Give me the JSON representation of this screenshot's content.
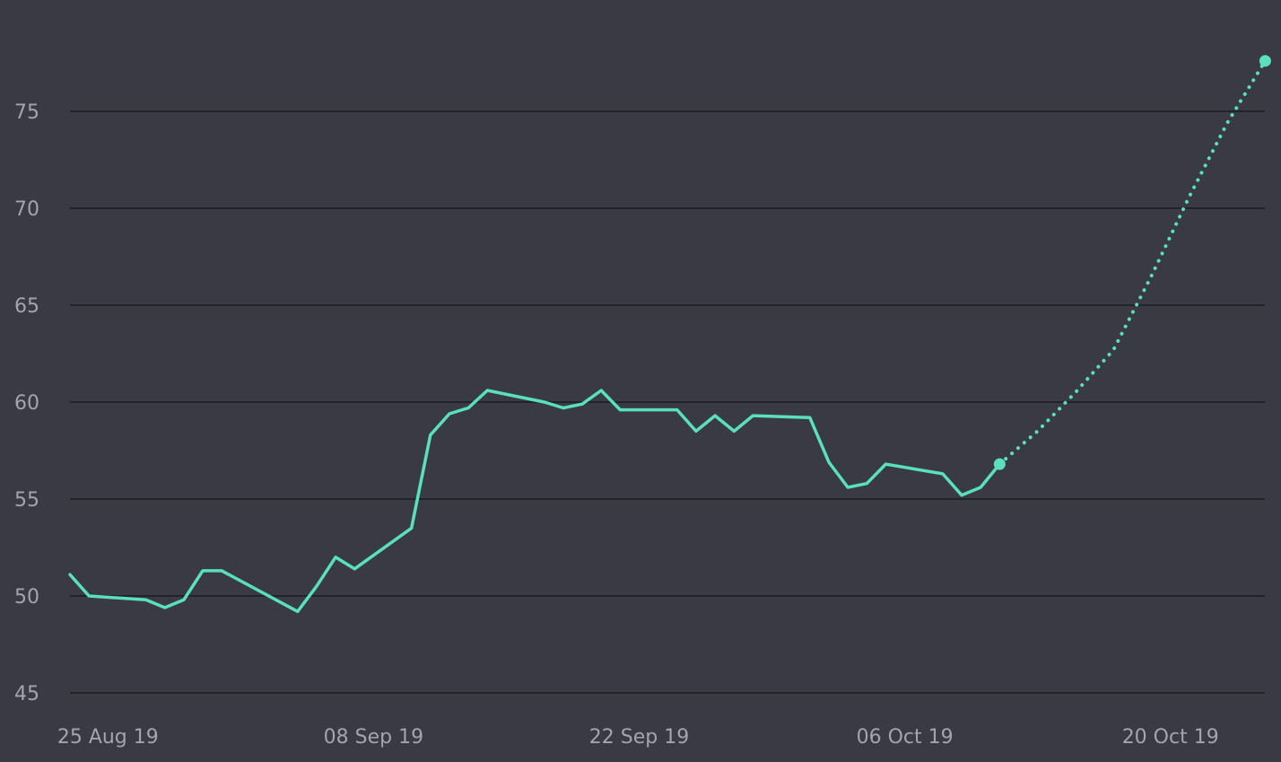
{
  "colors": {
    "background": "#3a3a45",
    "grid": "#23232b",
    "line": "#59e0bf",
    "tick_text": "#a3a3b2"
  },
  "chart_data": {
    "type": "line",
    "title": "",
    "xlabel": "",
    "ylabel": "",
    "ylim": [
      44.5,
      77.5
    ],
    "xlim": [
      "2019-08-23",
      "2019-10-24"
    ],
    "y_ticks": [
      45,
      50,
      55,
      60,
      65,
      70,
      75
    ],
    "x_ticks": [
      {
        "date": "2019-08-25",
        "label": "25 Aug 19"
      },
      {
        "date": "2019-09-08",
        "label": "08 Sep 19"
      },
      {
        "date": "2019-09-22",
        "label": "22 Sep 19"
      },
      {
        "date": "2019-10-06",
        "label": "06 Oct 19"
      },
      {
        "date": "2019-10-20",
        "label": "20 Oct 19"
      }
    ],
    "grid": true,
    "series": [
      {
        "style": "solid",
        "points": [
          [
            "2019-08-23",
            51.1
          ],
          [
            "2019-08-24",
            50.0
          ],
          [
            "2019-08-27",
            49.8
          ],
          [
            "2019-08-28",
            49.4
          ],
          [
            "2019-08-29",
            49.8
          ],
          [
            "2019-08-30",
            51.3
          ],
          [
            "2019-08-31",
            51.3
          ],
          [
            "2019-09-04",
            49.2
          ],
          [
            "2019-09-05",
            50.5
          ],
          [
            "2019-09-06",
            52.0
          ],
          [
            "2019-09-07",
            51.4
          ],
          [
            "2019-09-10",
            53.5
          ],
          [
            "2019-09-11",
            58.3
          ],
          [
            "2019-09-12",
            59.4
          ],
          [
            "2019-09-13",
            59.7
          ],
          [
            "2019-09-14",
            60.6
          ],
          [
            "2019-09-17",
            60.0
          ],
          [
            "2019-09-18",
            59.7
          ],
          [
            "2019-09-19",
            59.9
          ],
          [
            "2019-09-20",
            60.6
          ],
          [
            "2019-09-21",
            59.6
          ],
          [
            "2019-09-24",
            59.6
          ],
          [
            "2019-09-25",
            58.5
          ],
          [
            "2019-09-26",
            59.3
          ],
          [
            "2019-09-27",
            58.5
          ],
          [
            "2019-09-28",
            59.3
          ],
          [
            "2019-10-01",
            59.2
          ],
          [
            "2019-10-02",
            56.9
          ],
          [
            "2019-10-03",
            55.6
          ],
          [
            "2019-10-04",
            55.8
          ],
          [
            "2019-10-05",
            56.8
          ],
          [
            "2019-10-08",
            56.3
          ],
          [
            "2019-10-09",
            55.2
          ],
          [
            "2019-10-10",
            55.6
          ],
          [
            "2019-10-11",
            56.8
          ]
        ]
      },
      {
        "style": "dotted",
        "points": [
          [
            "2019-10-11",
            56.8
          ],
          [
            "2019-10-13",
            58.5
          ],
          [
            "2019-10-15",
            60.5
          ],
          [
            "2019-10-17",
            62.7
          ],
          [
            "2019-10-19",
            66.5
          ],
          [
            "2019-10-21",
            70.6
          ],
          [
            "2019-10-23",
            74.4
          ],
          [
            "2019-10-25",
            77.6
          ]
        ]
      }
    ]
  }
}
